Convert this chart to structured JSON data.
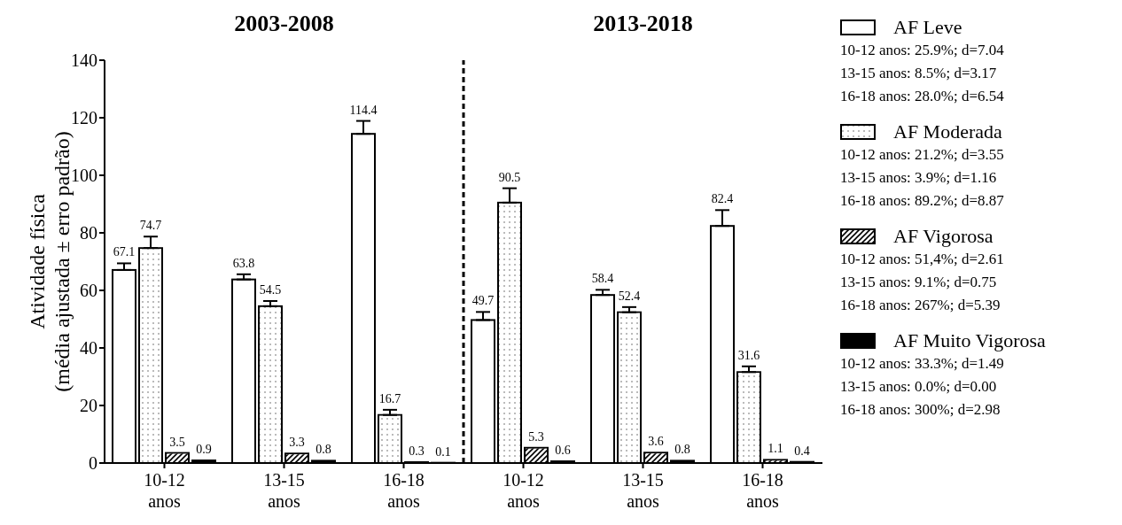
{
  "chart_data": {
    "type": "bar",
    "ylabel": "Atividade física\n(média ajustada ± erro padrão)",
    "categories": [
      "10-12\nanos",
      "13-15\nanos",
      "16-18\nanos",
      "10-12\nanos",
      "13-15\nanos",
      "16-18\nanos"
    ],
    "series": [
      {
        "name": "AF Leve",
        "color": "#ffffff",
        "values": [
          67.1,
          63.8,
          114.4,
          49.7,
          58.4,
          82.4
        ],
        "errors": [
          [
            67.1,
            69.4
          ],
          [
            63.8,
            65.6
          ],
          [
            114.4,
            118.9
          ],
          [
            49.7,
            52.5
          ],
          [
            58.4,
            60.2
          ],
          [
            82.4,
            87.9
          ]
        ]
      },
      {
        "name": "AF Moderada",
        "color": "#ffffff",
        "values": [
          74.7,
          54.5,
          16.7,
          90.5,
          52.4,
          31.6
        ],
        "errors": [
          [
            74.7,
            78.7
          ],
          [
            54.5,
            56.3
          ],
          [
            16.7,
            18.5
          ],
          [
            90.5,
            95.5
          ],
          [
            52.4,
            54.2
          ],
          [
            31.6,
            33.6
          ]
        ]
      },
      {
        "name": "AF Vigorosa",
        "color": "#ffffff",
        "values": [
          3.5,
          3.3,
          0.3,
          5.3,
          3.6,
          1.1
        ]
      },
      {
        "name": "AF Muito Vigorosa",
        "color": "#000000",
        "values": [
          0.9,
          0.8,
          0.1,
          0.6,
          0.8,
          0.4
        ]
      }
    ],
    "ylim": [
      0,
      140
    ],
    "yticks": [
      0,
      20,
      40,
      60,
      80,
      100,
      120,
      140
    ],
    "data_labels": true,
    "grid": false,
    "legend": "right",
    "annotations": [
      "2003-2008",
      "2013-2018",
      "10-12 anos: 25.9%; d=7.04",
      "13-15 anos: 8.5%; d=3.17",
      "16-18 anos: 28.0%; d=6.54",
      "10-12 anos: 21.2%; d=3.55",
      "13-15 anos: 3.9%; d=1.16",
      "16-18 anos: 89.2%; d=8.87",
      "10-12 anos: 51,4%; d=2.61",
      "13-15 anos: 9.1%; d=0.75",
      "16-18 anos: 267%; d=5.39",
      "10-12 anos: 33.3%; d=1.49",
      "13-15 anos: 0.0%; d=0.00",
      "16-18 anos: 300%; d=2.98"
    ]
  }
}
